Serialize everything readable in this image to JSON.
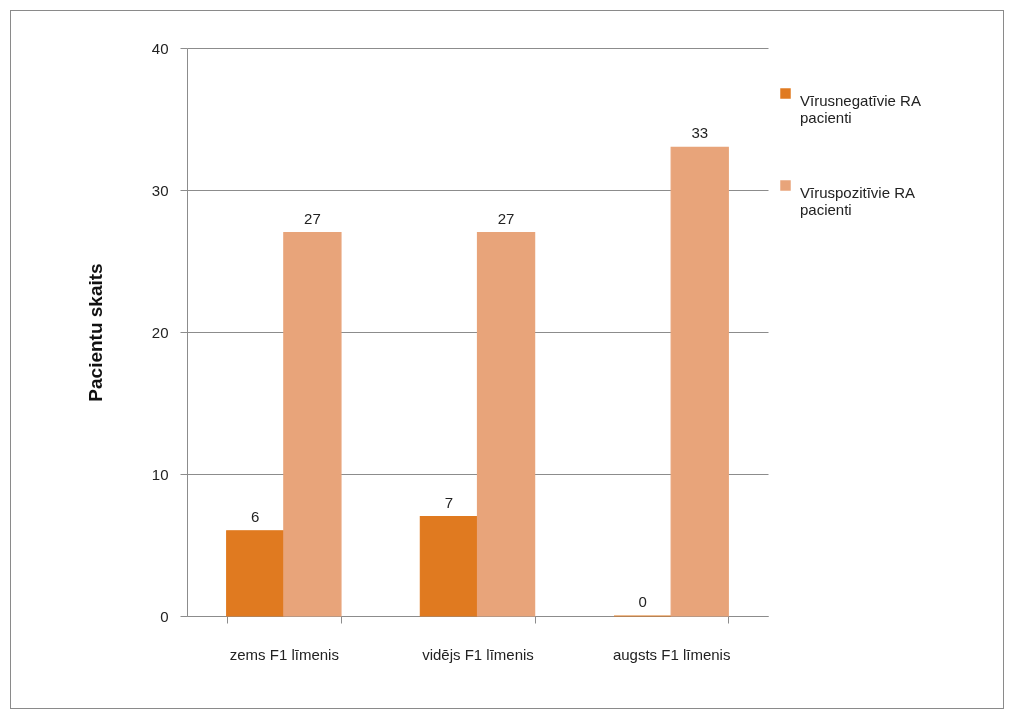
{
  "chart_data": {
    "type": "bar",
    "ylabel": "Pacientu skaits",
    "categories": [
      "zems F1 līmenis",
      "vidējs F1 līmenis",
      "augsts F1 līmenis"
    ],
    "series": [
      {
        "name": "Vīrusnegatīvie RA pacienti",
        "color": "#e07a20",
        "values": [
          6,
          7,
          0
        ]
      },
      {
        "name": "Vīruspozitīvie RA pacienti",
        "color": "#e8a47a",
        "values": [
          27,
          27,
          33
        ]
      }
    ],
    "ylim": [
      0,
      40
    ],
    "yticks": [
      0,
      10,
      20,
      30,
      40
    ],
    "grid": "y",
    "legend": "right",
    "data_labels": true
  }
}
